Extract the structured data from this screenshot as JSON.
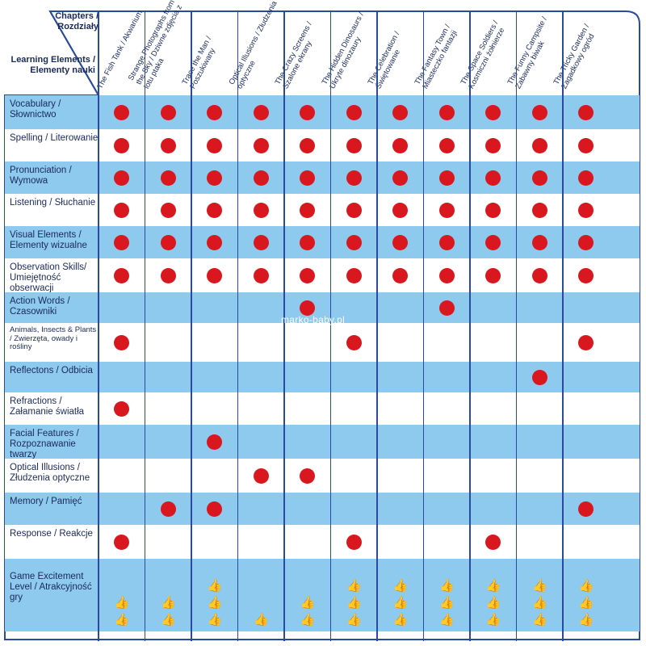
{
  "header": {
    "chapters_label": "Chapters / Rozdziały",
    "learning_label": "Learning Elements / Elementy nauki"
  },
  "chapters": [
    "The Fish Tank / Akwarium",
    "Strange Photographs from the Sky / Dziwne zdjęcia z lotu ptaka",
    "Trace the Man / Poszukiwany",
    "Optical Illusions / Złudzenia optyczne",
    "The Crazy Screens / Szalone ekrany",
    "The Hidden Dinosaurs / Ukryte dinozaury",
    "The Celebration / Świętowanie",
    "The Fantasy Town / Miasteczko fantazji",
    "The Space Soldiers / Kosmiczni żołnierze",
    "The Funny Campsite / Zabawny biwak",
    "The Tricky Garden / Zagadkowy ogród"
  ],
  "elements": [
    {
      "label": "Vocabulary / Słownictwo",
      "marks": [
        1,
        1,
        1,
        1,
        1,
        1,
        1,
        1,
        1,
        1,
        1
      ]
    },
    {
      "label": "Spelling / Literowanie",
      "marks": [
        1,
        1,
        1,
        1,
        1,
        1,
        1,
        1,
        1,
        1,
        1
      ]
    },
    {
      "label": "Pronunciation / Wymowa",
      "marks": [
        1,
        1,
        1,
        1,
        1,
        1,
        1,
        1,
        1,
        1,
        1
      ]
    },
    {
      "label": "Listening / Słuchanie",
      "marks": [
        1,
        1,
        1,
        1,
        1,
        1,
        1,
        1,
        1,
        1,
        1
      ]
    },
    {
      "label": "Visual Elements / Elementy wizualne",
      "marks": [
        1,
        1,
        1,
        1,
        1,
        1,
        1,
        1,
        1,
        1,
        1
      ]
    },
    {
      "label": "Observation Skills/ Umiejętność obserwacji",
      "marks": [
        1,
        1,
        1,
        1,
        1,
        1,
        1,
        1,
        1,
        1,
        1
      ]
    },
    {
      "label": "Action Words / Czasowniki",
      "marks": [
        0,
        0,
        0,
        0,
        1,
        0,
        0,
        1,
        0,
        0,
        0
      ]
    },
    {
      "label": "Animals, Insects & Plants / Zwierzęta, owady i rośliny",
      "marks": [
        1,
        0,
        0,
        0,
        0,
        1,
        0,
        0,
        0,
        0,
        1
      ]
    },
    {
      "label": "Reflectons / Odbicia",
      "marks": [
        0,
        0,
        0,
        0,
        0,
        0,
        0,
        0,
        0,
        1,
        0
      ]
    },
    {
      "label": "Refractions / Załamanie światła",
      "marks": [
        1,
        0,
        0,
        0,
        0,
        0,
        0,
        0,
        0,
        0,
        0
      ]
    },
    {
      "label": "Facial Features / Rozpoznawanie twarzy",
      "marks": [
        0,
        0,
        1,
        0,
        0,
        0,
        0,
        0,
        0,
        0,
        0
      ]
    },
    {
      "label": "Optical Illusions / Złudzenia optyczne",
      "marks": [
        0,
        0,
        0,
        1,
        1,
        0,
        0,
        0,
        0,
        0,
        0
      ]
    },
    {
      "label": "Memory / Pamięć",
      "marks": [
        0,
        1,
        1,
        0,
        0,
        0,
        0,
        0,
        0,
        0,
        1
      ]
    },
    {
      "label": "Response / Reakcje",
      "marks": [
        1,
        0,
        0,
        0,
        0,
        1,
        0,
        0,
        1,
        0,
        0
      ]
    }
  ],
  "excitement": {
    "label": "Game Excitement Level / Atrakcyjność gry",
    "levels": [
      2,
      2,
      3,
      1,
      2,
      3,
      3,
      3,
      3,
      3,
      3
    ],
    "icon": "thumbs-up-icon",
    "icon_color": "#f0a81a"
  },
  "colors": {
    "row_blue": "#8ec9ee",
    "dot_red": "#d9171e",
    "line_navy": "#2a4aa0",
    "text_navy": "#1a2a5a"
  },
  "watermark": "marko-baby.pl"
}
